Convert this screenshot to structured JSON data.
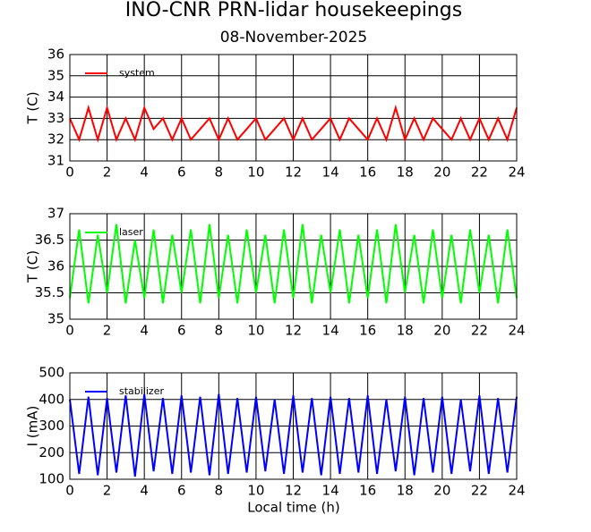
{
  "chart_data": [
    {
      "type": "line",
      "title": "INO-CNR PRN-lidar housekeepings",
      "subtitle": "08-November-2025",
      "ylabel": "T (C)",
      "x": [
        0,
        0.5,
        1,
        1.5,
        2,
        2.5,
        3,
        3.5,
        4,
        4.5,
        5,
        5.5,
        6,
        6.5,
        7,
        7.5,
        8,
        8.5,
        9,
        9.5,
        10,
        10.5,
        11,
        11.5,
        12,
        12.5,
        13,
        13.5,
        14,
        14.5,
        15,
        15.5,
        16,
        16.5,
        17,
        17.5,
        18,
        18.5,
        19,
        19.5,
        20,
        20.5,
        21,
        21.5,
        22,
        22.5,
        23,
        23.5,
        24
      ],
      "series": [
        {
          "name": "system",
          "color": "#ff0000",
          "values": [
            33,
            32,
            33.5,
            32,
            33.5,
            32,
            33,
            32,
            33.5,
            32.5,
            33,
            32,
            33,
            32,
            32.5,
            33,
            32,
            33,
            32,
            32.5,
            33,
            32,
            32.5,
            33,
            32,
            33,
            32,
            32.5,
            33,
            32,
            33,
            32.5,
            32,
            33,
            32,
            33.5,
            32,
            33,
            32,
            33,
            32.5,
            32,
            33,
            32,
            33,
            32,
            33,
            32,
            33.5
          ]
        }
      ],
      "xlim": [
        0,
        24
      ],
      "ylim": [
        31,
        36
      ],
      "xticks": [
        0,
        2,
        4,
        6,
        8,
        10,
        12,
        14,
        16,
        18,
        20,
        22,
        24
      ],
      "yticks": [
        31,
        32,
        33,
        34,
        35,
        36
      ],
      "grid": true
    },
    {
      "type": "line",
      "ylabel": "T (C)",
      "x": [
        0,
        0.5,
        1,
        1.5,
        2,
        2.5,
        3,
        3.5,
        4,
        4.5,
        5,
        5.5,
        6,
        6.5,
        7,
        7.5,
        8,
        8.5,
        9,
        9.5,
        10,
        10.5,
        11,
        11.5,
        12,
        12.5,
        13,
        13.5,
        14,
        14.5,
        15,
        15.5,
        16,
        16.5,
        17,
        17.5,
        18,
        18.5,
        19,
        19.5,
        20,
        20.5,
        21,
        21.5,
        22,
        22.5,
        23,
        23.5,
        24
      ],
      "series": [
        {
          "name": "laser",
          "color": "#00ff00",
          "values": [
            35.4,
            36.7,
            35.3,
            36.6,
            35.5,
            36.8,
            35.3,
            36.5,
            35.4,
            36.7,
            35.3,
            36.6,
            35.5,
            36.7,
            35.3,
            36.8,
            35.4,
            36.6,
            35.3,
            36.7,
            35.5,
            36.6,
            35.3,
            36.7,
            35.4,
            36.8,
            35.3,
            36.6,
            35.5,
            36.7,
            35.3,
            36.6,
            35.4,
            36.7,
            35.3,
            36.8,
            35.5,
            36.6,
            35.3,
            36.7,
            35.4,
            36.6,
            35.3,
            36.7,
            35.5,
            36.6,
            35.3,
            36.7,
            35.4
          ]
        }
      ],
      "xlim": [
        0,
        24
      ],
      "ylim": [
        35,
        37
      ],
      "xticks": [
        0,
        2,
        4,
        6,
        8,
        10,
        12,
        14,
        16,
        18,
        20,
        22,
        24
      ],
      "yticks": [
        35,
        35.5,
        36,
        36.5,
        37
      ],
      "grid": true
    },
    {
      "type": "line",
      "ylabel": "I (mA)",
      "xlabel": "Local time (h)",
      "x": [
        0,
        0.5,
        1,
        1.5,
        2,
        2.5,
        3,
        3.5,
        4,
        4.5,
        5,
        5.5,
        6,
        6.5,
        7,
        7.5,
        8,
        8.5,
        9,
        9.5,
        10,
        10.5,
        11,
        11.5,
        12,
        12.5,
        13,
        13.5,
        14,
        14.5,
        15,
        15.5,
        16,
        16.5,
        17,
        17.5,
        18,
        18.5,
        19,
        19.5,
        20,
        20.5,
        21,
        21.5,
        22,
        22.5,
        23,
        23.5,
        24
      ],
      "series": [
        {
          "name": "stabilizer",
          "color": "#0000ff",
          "values": [
            400,
            120,
            410,
            115,
            405,
            125,
            415,
            110,
            420,
            130,
            405,
            120,
            415,
            125,
            410,
            115,
            420,
            120,
            405,
            125,
            410,
            130,
            400,
            120,
            415,
            125,
            405,
            115,
            410,
            120,
            405,
            125,
            415,
            120,
            400,
            130,
            410,
            115,
            405,
            125,
            410,
            120,
            400,
            130,
            415,
            120,
            405,
            125,
            410
          ]
        }
      ],
      "xlim": [
        0,
        24
      ],
      "ylim": [
        100,
        500
      ],
      "xticks": [
        0,
        2,
        4,
        6,
        8,
        10,
        12,
        14,
        16,
        18,
        20,
        22,
        24
      ],
      "yticks": [
        100,
        200,
        300,
        400,
        500
      ],
      "grid": true
    }
  ]
}
